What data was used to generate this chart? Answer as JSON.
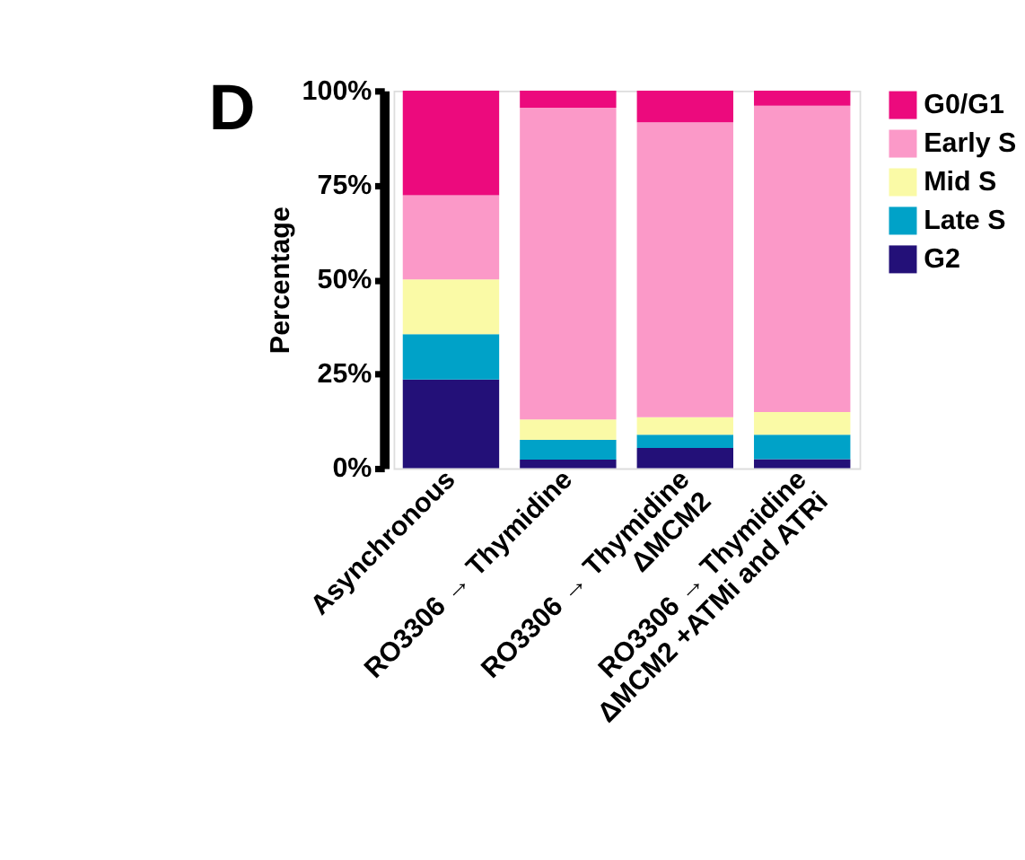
{
  "chart_data": {
    "type": "bar",
    "stacked": true,
    "ylabel": "Percentage",
    "annotations": [
      "D"
    ],
    "categories": [
      "Asynchronous",
      "RO3306 → Thymidine",
      "RO3306 → Thymidine\nΔMCM2",
      "RO3306 → Thymidine\nΔMCM2 +ATMi and ATRi"
    ],
    "series": [
      {
        "name": "G2",
        "color": "#231078",
        "values": [
          23.5,
          2.3,
          5.4,
          2.4
        ]
      },
      {
        "name": "Late S",
        "color": "#00a2c8",
        "values": [
          12.0,
          5.2,
          3.5,
          6.5
        ]
      },
      {
        "name": "Mid S",
        "color": "#fafaa6",
        "values": [
          14.5,
          5.4,
          4.6,
          6.0
        ]
      },
      {
        "name": "Early S",
        "color": "#fb99c8",
        "values": [
          22.3,
          82.6,
          78.1,
          81.1
        ]
      },
      {
        "name": "G0/G1",
        "color": "#ec0a7d",
        "values": [
          27.7,
          4.5,
          8.4,
          4.0
        ]
      }
    ],
    "ylim": [
      0,
      100
    ],
    "yticks": [
      {
        "value": 0,
        "label": "0%"
      },
      {
        "value": 25,
        "label": "25%"
      },
      {
        "value": 50,
        "label": "50%"
      },
      {
        "value": 75,
        "label": "75%"
      },
      {
        "value": 100,
        "label": "100%"
      }
    ],
    "grid": false,
    "legend": "right"
  }
}
